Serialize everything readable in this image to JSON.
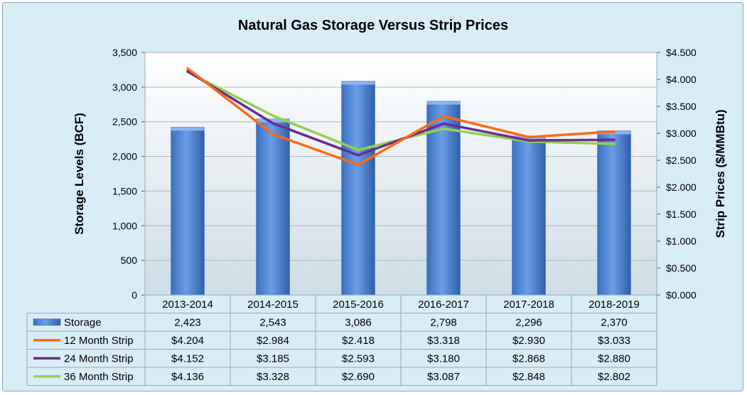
{
  "chart_data": {
    "type": "bar",
    "title": "Natural Gas Storage Versus Strip Prices",
    "ylabel": "Storage Levels (BCF)",
    "y2label": "Strip Prices ($/MMBtu)",
    "ylim": [
      0,
      3500
    ],
    "y2lim": [
      0,
      4.5
    ],
    "yticks": [
      "0",
      "500",
      "1,000",
      "1,500",
      "2,000",
      "2,500",
      "3,000",
      "3,500"
    ],
    "y2ticks": [
      "$0.000",
      "$0.500",
      "$1.000",
      "$1.500",
      "$2.000",
      "$2.500",
      "$3.000",
      "$3.500",
      "$4.000",
      "$4.500"
    ],
    "categories": [
      "2013-2014",
      "2014-2015",
      "2015-2016",
      "2016-2017",
      "2017-2018",
      "2018-2019"
    ],
    "grid": true,
    "legend": "data table",
    "colors": {
      "storage": "#4f86d9",
      "strip12": "#ff6a13",
      "strip24": "#6a2c91",
      "strip36": "#92d050",
      "plot_bg": "#dde8ee",
      "frame_bg": "#d9edf7"
    },
    "series": [
      {
        "name": "Storage",
        "kind": "bar",
        "axis": "left",
        "values": [
          2423,
          2543,
          3086,
          2798,
          2296,
          2370
        ],
        "labels": [
          "2,423",
          "2,543",
          "3,086",
          "2,798",
          "2,296",
          "2,370"
        ]
      },
      {
        "name": "12 Month Strip",
        "kind": "line",
        "axis": "right",
        "values": [
          4.204,
          2.984,
          2.418,
          3.318,
          2.93,
          3.033
        ],
        "labels": [
          "$4.204",
          "$2.984",
          "$2.418",
          "$3.318",
          "$2.930",
          "$3.033"
        ]
      },
      {
        "name": "24 Month Strip",
        "kind": "line",
        "axis": "right",
        "values": [
          4.152,
          3.185,
          2.593,
          3.18,
          2.868,
          2.88
        ],
        "labels": [
          "$4.152",
          "$3.185",
          "$2.593",
          "$3.180",
          "$2.868",
          "$2.880"
        ]
      },
      {
        "name": "36 Month Strip",
        "kind": "line",
        "axis": "right",
        "values": [
          4.136,
          3.328,
          2.69,
          3.087,
          2.848,
          2.802
        ],
        "labels": [
          "$4.136",
          "$3.328",
          "$2.690",
          "$3.087",
          "$2.848",
          "$2.802"
        ]
      }
    ]
  }
}
